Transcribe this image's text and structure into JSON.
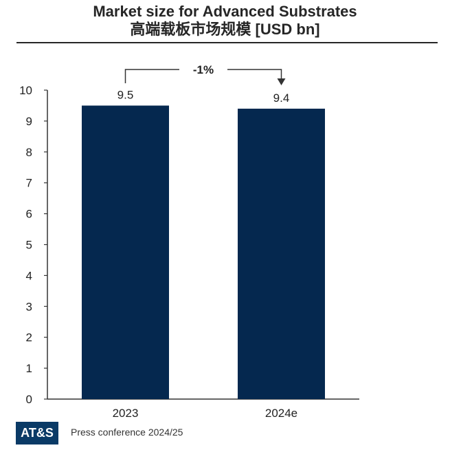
{
  "header": {
    "title_line1": "Market size for Advanced Substrates",
    "title_line2": "高端载板市场规模  [USD bn]"
  },
  "chart_data": {
    "type": "bar",
    "categories": [
      "2023",
      "2024e"
    ],
    "values": [
      9.5,
      9.4
    ],
    "data_labels": [
      "9.5",
      "9.4"
    ],
    "ylim": [
      0,
      10
    ],
    "yticks": [
      0,
      1,
      2,
      3,
      4,
      5,
      6,
      7,
      8,
      9,
      10
    ],
    "grid": false,
    "bar_color": "#05284f",
    "annotation": {
      "text": "-1%",
      "from": "2023",
      "to": "2024e"
    }
  },
  "footer": {
    "logo_text": "AT&S",
    "caption": "Press conference 2024/25"
  }
}
